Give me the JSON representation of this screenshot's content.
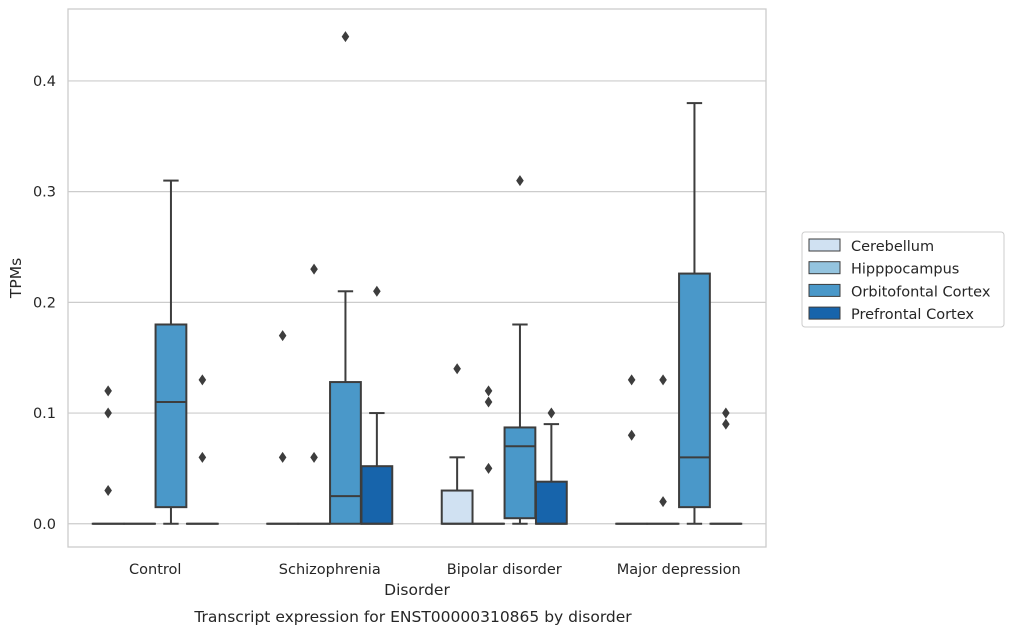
{
  "chart_data": {
    "type": "box",
    "title": "",
    "caption": "Transcript expression for ENST00000310865 by disorder",
    "xlabel": "Disorder",
    "ylabel": "TPMs",
    "ylim": [
      -0.021,
      0.465
    ],
    "yticks": [
      0.0,
      0.1,
      0.2,
      0.3,
      0.4
    ],
    "ytick_labels": [
      "0.0",
      "0.1",
      "0.2",
      "0.3",
      "0.4"
    ],
    "categories": [
      "Control",
      "Schizophrenia",
      "Bipolar disorder",
      "Major depression"
    ],
    "grid": "horizontal",
    "legend_position": "right",
    "series": [
      {
        "name": "Cerebellum",
        "color": "#d0e1f2",
        "boxes": [
          {
            "q1": 0,
            "median": 0,
            "q3": 0,
            "whisker_low": 0,
            "whisker_high": 0,
            "outliers": [
              0.03,
              0.1,
              0.12
            ]
          },
          {
            "q1": 0,
            "median": 0,
            "q3": 0,
            "whisker_low": 0,
            "whisker_high": 0,
            "outliers": [
              0.06,
              0.17
            ]
          },
          {
            "q1": 0,
            "median": 0,
            "q3": 0.03,
            "whisker_low": 0,
            "whisker_high": 0.06,
            "outliers": [
              0.14
            ]
          },
          {
            "q1": 0,
            "median": 0,
            "q3": 0,
            "whisker_low": 0,
            "whisker_high": 0,
            "outliers": [
              0.08,
              0.13
            ]
          }
        ]
      },
      {
        "name": "Hipppocampus",
        "color": "#94c4df",
        "boxes": [
          {
            "q1": 0,
            "median": 0,
            "q3": 0,
            "whisker_low": 0,
            "whisker_high": 0,
            "outliers": []
          },
          {
            "q1": 0,
            "median": 0,
            "q3": 0,
            "whisker_low": 0,
            "whisker_high": 0,
            "outliers": [
              0.06,
              0.23
            ]
          },
          {
            "q1": 0,
            "median": 0,
            "q3": 0,
            "whisker_low": 0,
            "whisker_high": 0,
            "outliers": [
              0.05,
              0.11,
              0.12
            ]
          },
          {
            "q1": 0,
            "median": 0,
            "q3": 0,
            "whisker_low": 0,
            "whisker_high": 0,
            "outliers": [
              0.02,
              0.13
            ]
          }
        ]
      },
      {
        "name": "Orbitofontal Cortex",
        "color": "#4a98c9",
        "boxes": [
          {
            "q1": 0.015,
            "median": 0.11,
            "q3": 0.18,
            "whisker_low": 0,
            "whisker_high": 0.31,
            "outliers": []
          },
          {
            "q1": 0,
            "median": 0.025,
            "q3": 0.128,
            "whisker_low": 0,
            "whisker_high": 0.21,
            "outliers": [
              0.44
            ]
          },
          {
            "q1": 0.005,
            "median": 0.07,
            "q3": 0.087,
            "whisker_low": 0,
            "whisker_high": 0.18,
            "outliers": [
              0.31
            ]
          },
          {
            "q1": 0.015,
            "median": 0.06,
            "q3": 0.226,
            "whisker_low": 0,
            "whisker_high": 0.38,
            "outliers": []
          }
        ]
      },
      {
        "name": "Prefrontal Cortex",
        "color": "#1764ab",
        "boxes": [
          {
            "q1": 0,
            "median": 0,
            "q3": 0,
            "whisker_low": 0,
            "whisker_high": 0,
            "outliers": [
              0.06,
              0.13
            ]
          },
          {
            "q1": 0,
            "median": 0,
            "q3": 0.052,
            "whisker_low": 0,
            "whisker_high": 0.1,
            "outliers": [
              0.21
            ]
          },
          {
            "q1": 0,
            "median": 0,
            "q3": 0.038,
            "whisker_low": 0,
            "whisker_high": 0.09,
            "outliers": [
              0.1
            ]
          },
          {
            "q1": 0,
            "median": 0,
            "q3": 0,
            "whisker_low": 0,
            "whisker_high": 0,
            "outliers": [
              0.09,
              0.1
            ]
          }
        ]
      }
    ]
  }
}
